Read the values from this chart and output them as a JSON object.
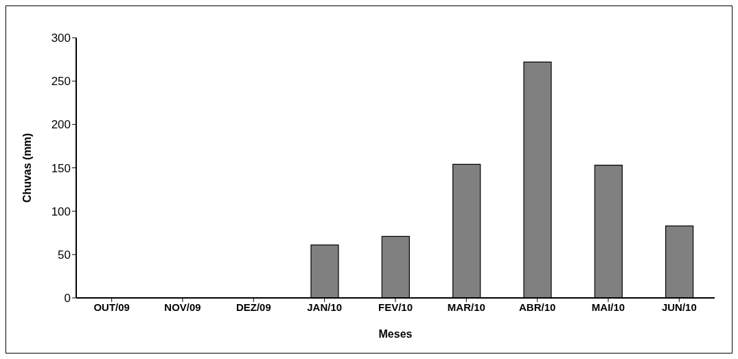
{
  "chart_data": {
    "type": "bar",
    "xlabel": "Meses",
    "ylabel": "Chuvas (mm)",
    "categories": [
      "OUT/09",
      "NOV/09",
      "DEZ/09",
      "JAN/10",
      "FEV/10",
      "MAR/10",
      "ABR/10",
      "MAI/10",
      "JUN/10"
    ],
    "values": [
      0,
      0,
      0,
      61,
      71,
      154,
      272,
      153,
      83
    ],
    "color": "#808080",
    "ylim": [
      0,
      300
    ],
    "yticks": [
      0,
      50,
      100,
      150,
      200,
      250,
      300
    ],
    "grid": false,
    "legend": false
  }
}
